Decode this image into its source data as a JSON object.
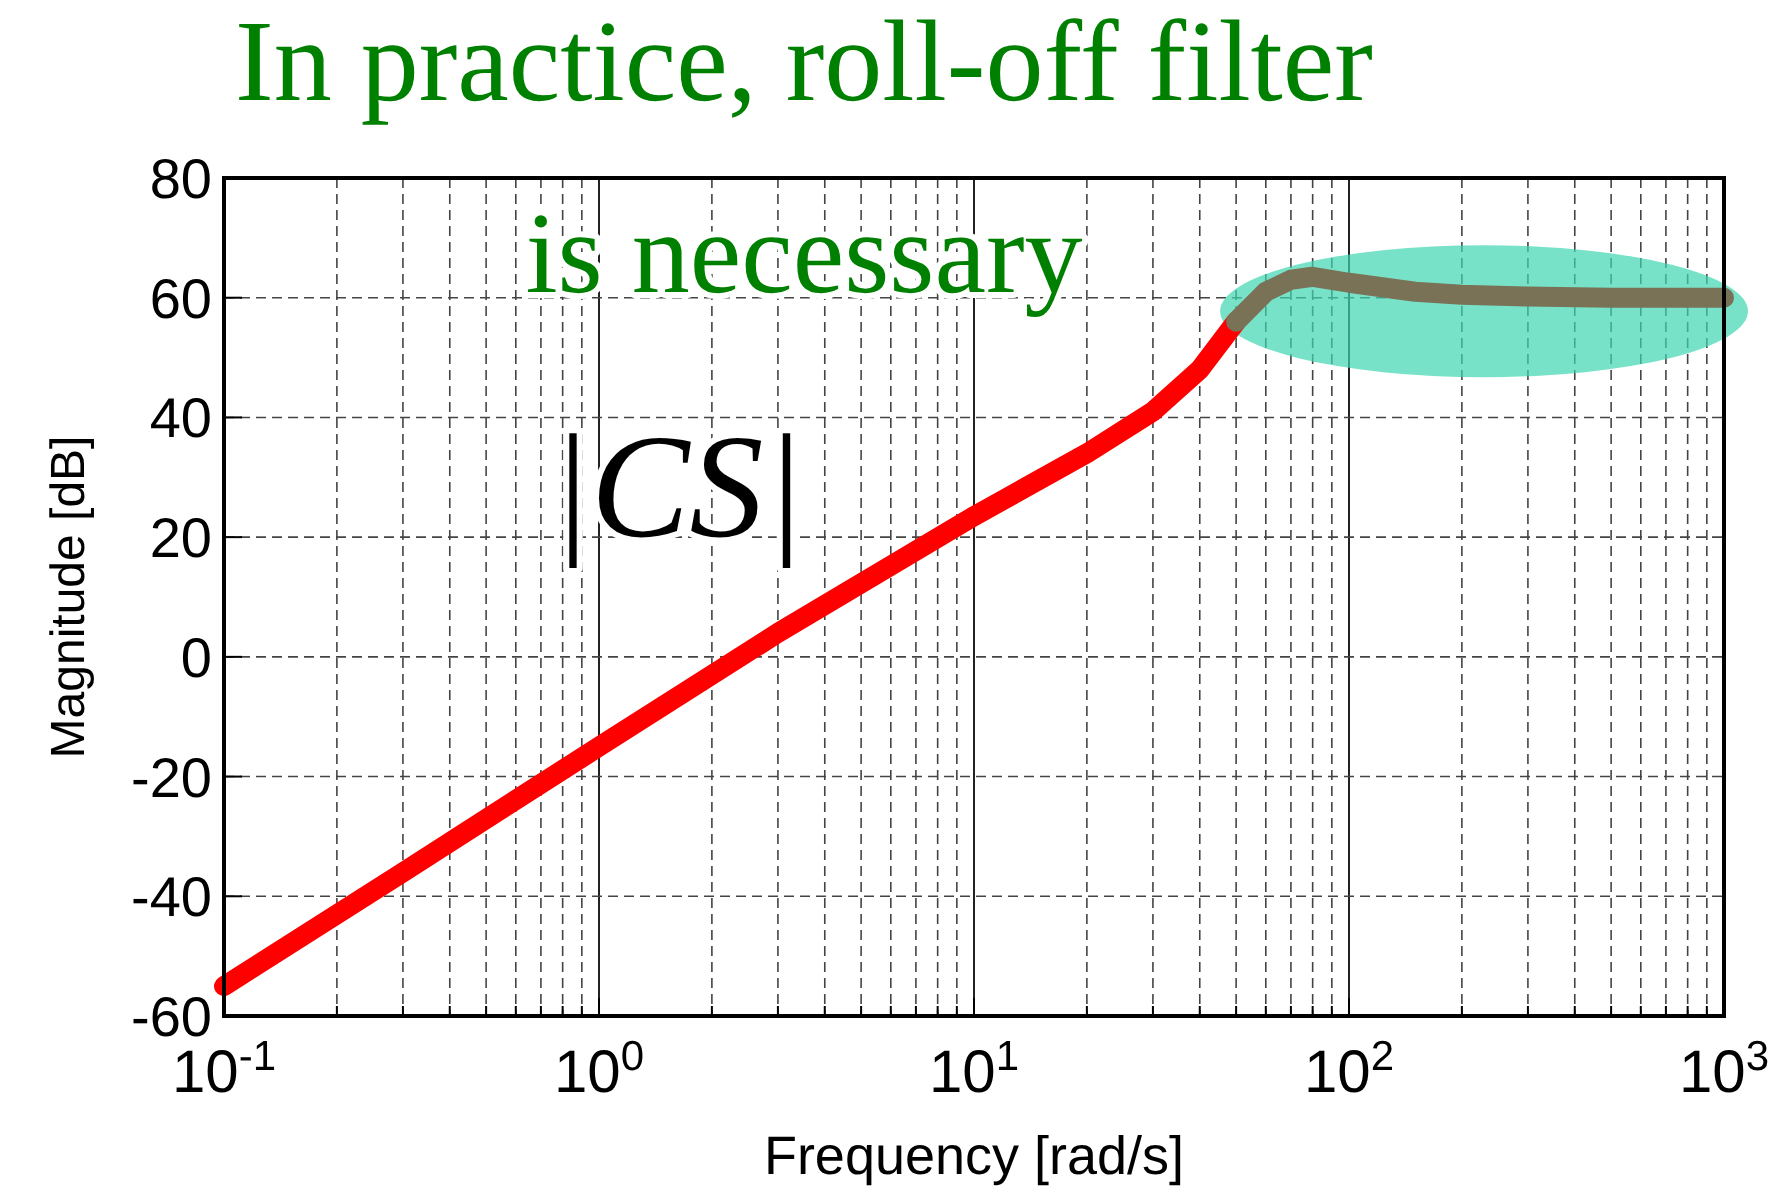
{
  "chart_data": {
    "type": "line",
    "title": "In practice, roll-off filter is necessary",
    "xlabel": "Frequency [rad/s]",
    "ylabel": "Magnitude [dB]",
    "annotations": [
      "|CS|"
    ],
    "log": "x",
    "grid": true,
    "line_style": "solid",
    "marker": "none",
    "xlim": [
      0.1,
      1000
    ],
    "ylim": [
      -60,
      80
    ],
    "xticks": [
      {
        "value": 0.1,
        "label": "10$^{-1}$"
      },
      {
        "value": 0.2,
        "label": null
      },
      {
        "value": 0.3,
        "label": null
      },
      {
        "value": 0.4,
        "label": null
      },
      {
        "value": 0.5,
        "label": null
      },
      {
        "value": 0.6,
        "label": null
      },
      {
        "value": 0.7,
        "label": null
      },
      {
        "value": 0.8,
        "label": null
      },
      {
        "value": 0.9,
        "label": null
      },
      {
        "value": 1,
        "label": "10$^{0}$"
      },
      {
        "value": 2,
        "label": null
      },
      {
        "value": 3,
        "label": null
      },
      {
        "value": 4,
        "label": null
      },
      {
        "value": 5,
        "label": null
      },
      {
        "value": 6,
        "label": null
      },
      {
        "value": 7,
        "label": null
      },
      {
        "value": 8,
        "label": null
      },
      {
        "value": 9,
        "label": null
      },
      {
        "value": 10,
        "label": "10$^{1}$"
      },
      {
        "value": 20,
        "label": null
      },
      {
        "value": 30,
        "label": null
      },
      {
        "value": 40,
        "label": null
      },
      {
        "value": 50,
        "label": null
      },
      {
        "value": 60,
        "label": null
      },
      {
        "value": 70,
        "label": null
      },
      {
        "value": 80,
        "label": null
      },
      {
        "value": 90,
        "label": null
      },
      {
        "value": 100,
        "label": "10$^{2}$"
      },
      {
        "value": 200,
        "label": null
      },
      {
        "value": 300,
        "label": null
      },
      {
        "value": 400,
        "label": null
      },
      {
        "value": 500,
        "label": null
      },
      {
        "value": 600,
        "label": null
      },
      {
        "value": 700,
        "label": null
      },
      {
        "value": 800,
        "label": null
      },
      {
        "value": 900,
        "label": null
      },
      {
        "value": 1000,
        "label": "10$^{3}$"
      }
    ],
    "yticks": [
      -60,
      -40,
      -20,
      0,
      20,
      40,
      60,
      80
    ],
    "series": [
      {
        "color": "#ff0000",
        "x": [
          0.1,
          0.3,
          1,
          3,
          10,
          20,
          30,
          40,
          50
        ],
        "values": [
          -55,
          -36,
          -15,
          4,
          23.5,
          34,
          41,
          48,
          56
        ]
      },
      {
        "color": "#7a7257",
        "x": [
          50,
          60,
          70,
          80,
          100,
          150,
          200,
          300,
          500,
          1000
        ],
        "values": [
          56,
          61,
          63,
          63.5,
          62.5,
          61,
          60.5,
          60.2,
          60,
          60
        ]
      }
    ]
  }
}
